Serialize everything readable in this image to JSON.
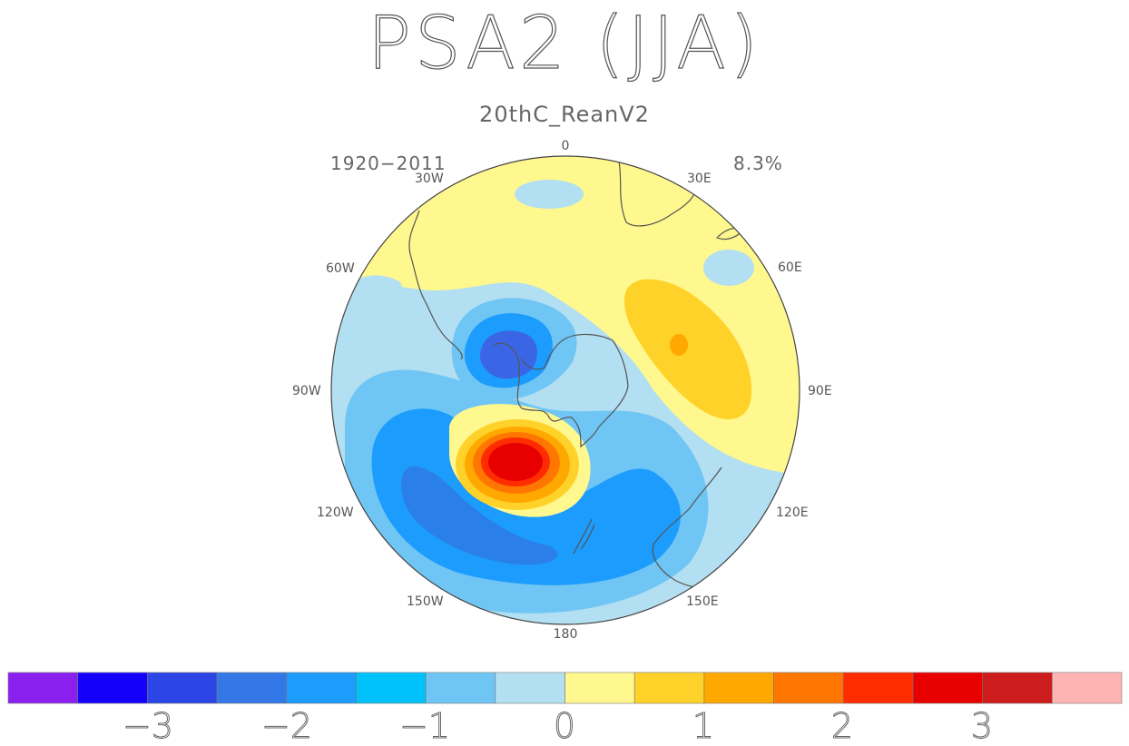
{
  "header": {
    "title": "PSA2 (JJA)",
    "subtitle": "20thC_ReanV2"
  },
  "annotations": {
    "period": "1920−2011",
    "variance": "8.3%"
  },
  "map": {
    "projection": "south-polar-stereographic",
    "longitude_labels": [
      "0",
      "30E",
      "60E",
      "90E",
      "120E",
      "150E",
      "180",
      "150W",
      "120W",
      "90W",
      "60W",
      "30W"
    ],
    "colors": {
      "neg_strong": "#2a40e0",
      "neg_mid": "#1c9cfc",
      "neg_light": "#6fc6f4",
      "neg_pale": "#b3dff2",
      "pos_pale": "#fff88e",
      "pos_light": "#ffd22a",
      "pos_mid": "#ffa800",
      "pos_orange": "#ff7700",
      "pos_red": "#ff2c00",
      "pos_darkred": "#e80000",
      "coast": "#555555"
    }
  },
  "colorbar": {
    "colors": [
      "#8a20ee",
      "#1400fa",
      "#2c46e6",
      "#3478e8",
      "#1c9cfc",
      "#00c2fa",
      "#6fc6f4",
      "#b3dff2",
      "#fff88e",
      "#ffd22a",
      "#ffa800",
      "#ff7700",
      "#ff2c00",
      "#e80000",
      "#cc1c1c",
      "#ffb4b4"
    ],
    "ticks": [
      "−3",
      "−2",
      "−1",
      "0",
      "1",
      "2",
      "3"
    ]
  }
}
